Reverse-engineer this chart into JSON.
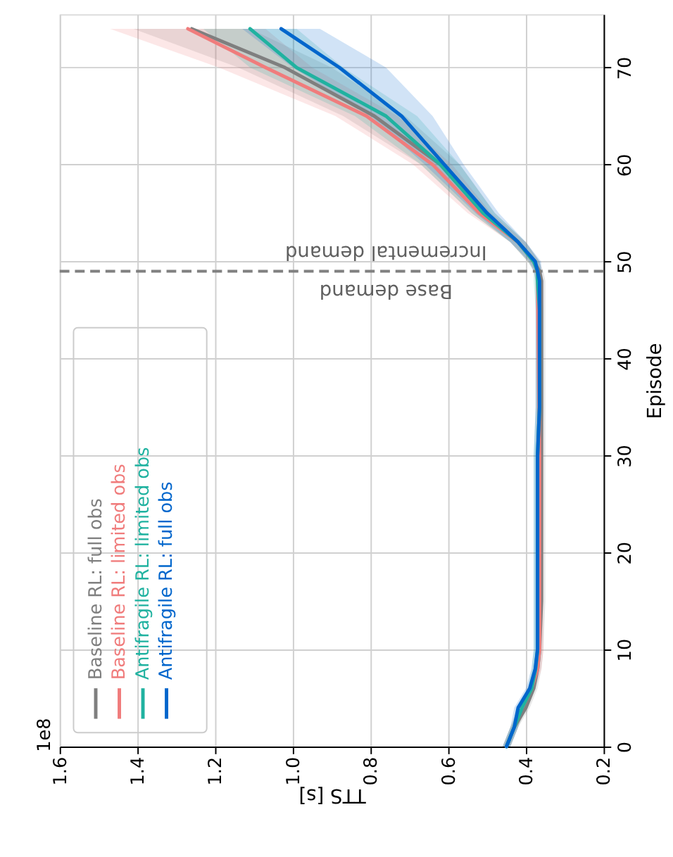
{
  "chart_data": {
    "type": "line",
    "orientation": "horizontal",
    "xlabel": "TTS [s]",
    "ylabel": "Episode",
    "x": [
      0,
      2,
      4,
      6,
      8,
      10,
      15,
      20,
      25,
      30,
      35,
      40,
      45,
      48,
      49,
      50,
      52,
      55,
      60,
      65,
      70,
      74
    ],
    "series": [
      {
        "name": "Baseline RL: full obs",
        "color": "#7f7f7f",
        "values": [
          0.45,
          0.43,
          0.4,
          0.38,
          0.37,
          0.365,
          0.36,
          0.36,
          0.36,
          0.36,
          0.36,
          0.36,
          0.36,
          0.36,
          0.365,
          0.38,
          0.42,
          0.51,
          0.62,
          0.79,
          1.02,
          1.26
        ],
        "lower": [
          0.44,
          0.42,
          0.39,
          0.37,
          0.36,
          0.355,
          0.35,
          0.35,
          0.35,
          0.35,
          0.35,
          0.35,
          0.35,
          0.35,
          0.355,
          0.365,
          0.4,
          0.48,
          0.57,
          0.71,
          0.9,
          1.11
        ],
        "upper": [
          0.46,
          0.44,
          0.41,
          0.39,
          0.38,
          0.375,
          0.37,
          0.37,
          0.37,
          0.37,
          0.37,
          0.37,
          0.37,
          0.37,
          0.375,
          0.395,
          0.44,
          0.54,
          0.67,
          0.87,
          1.14,
          1.41
        ]
      },
      {
        "name": "Baseline RL: limited obs",
        "color": "#f07c7c",
        "values": [
          null,
          null,
          0.41,
          0.385,
          0.37,
          0.365,
          0.365,
          0.365,
          0.365,
          0.365,
          null,
          null,
          null,
          null,
          0.37,
          0.38,
          0.42,
          0.52,
          0.64,
          0.81,
          1.07,
          1.27
        ],
        "lower": [
          0.44,
          0.42,
          0.4,
          0.375,
          0.36,
          0.355,
          0.355,
          0.355,
          0.355,
          0.355,
          0.355,
          0.355,
          0.355,
          0.355,
          0.36,
          0.365,
          0.4,
          0.49,
          0.59,
          0.73,
          0.95,
          1.07
        ],
        "upper": [
          0.46,
          0.44,
          0.42,
          0.395,
          0.38,
          0.375,
          0.375,
          0.375,
          0.375,
          0.375,
          0.375,
          0.375,
          0.375,
          0.375,
          0.38,
          0.395,
          0.44,
          0.55,
          0.69,
          0.89,
          1.19,
          1.47
        ]
      },
      {
        "name": "Antifragile RL: limited obs",
        "color": "#20b2a0",
        "values": [
          0.45,
          0.43,
          0.41,
          0.385,
          0.375,
          0.37,
          0.37,
          0.37,
          0.37,
          0.37,
          0.365,
          0.365,
          0.365,
          0.37,
          0.37,
          0.38,
          0.42,
          0.51,
          0.62,
          0.76,
          0.99,
          1.11
        ],
        "lower": [
          0.44,
          0.42,
          0.4,
          0.375,
          0.365,
          0.36,
          0.36,
          0.36,
          0.36,
          0.36,
          0.355,
          0.355,
          0.355,
          0.36,
          0.36,
          0.365,
          0.4,
          0.48,
          0.57,
          0.68,
          0.87,
          0.99
        ],
        "upper": [
          0.46,
          0.44,
          0.42,
          0.395,
          0.385,
          0.38,
          0.38,
          0.38,
          0.38,
          0.38,
          0.375,
          0.375,
          0.375,
          0.38,
          0.38,
          0.395,
          0.44,
          0.54,
          0.67,
          0.84,
          1.11,
          1.23
        ]
      },
      {
        "name": "Antifragile RL: full obs",
        "color": "#0066cc",
        "values": [
          0.45,
          0.43,
          0.42,
          0.39,
          0.376,
          0.37,
          0.37,
          0.37,
          0.37,
          0.37,
          0.365,
          0.365,
          0.365,
          0.365,
          0.37,
          0.376,
          0.42,
          0.5,
          0.61,
          0.72,
          0.88,
          1.03
        ],
        "lower": [
          0.44,
          0.42,
          0.41,
          0.38,
          0.366,
          0.36,
          0.36,
          0.36,
          0.36,
          0.36,
          0.355,
          0.355,
          0.355,
          0.355,
          0.36,
          0.361,
          0.4,
          0.47,
          0.56,
          0.64,
          0.76,
          0.93
        ],
        "upper": [
          0.46,
          0.44,
          0.43,
          0.4,
          0.386,
          0.38,
          0.38,
          0.38,
          0.38,
          0.38,
          0.375,
          0.375,
          0.375,
          0.375,
          0.38,
          0.391,
          0.44,
          0.53,
          0.66,
          0.8,
          1.0,
          1.13
        ]
      }
    ],
    "xlim": [
      1.6,
      0.2
    ],
    "xticks": [
      1.6,
      1.4,
      1.2,
      {
        "value": 1.0,
        "label": "1.0"
      },
      0.8,
      0.6,
      0.4,
      0.2
    ],
    "ylim": [
      0,
      75.5
    ],
    "yticks": [
      0,
      10,
      20,
      30,
      40,
      50,
      60,
      70
    ],
    "ref_lines": [
      {
        "axis": "y",
        "value": 49,
        "color": "#808080",
        "line_style": "dashed"
      }
    ],
    "annotations": [
      "Incremental demand",
      "Base demand",
      "1e8"
    ],
    "grid": true,
    "legend": "bottom left",
    "line_style": "solid",
    "marker": "none"
  }
}
